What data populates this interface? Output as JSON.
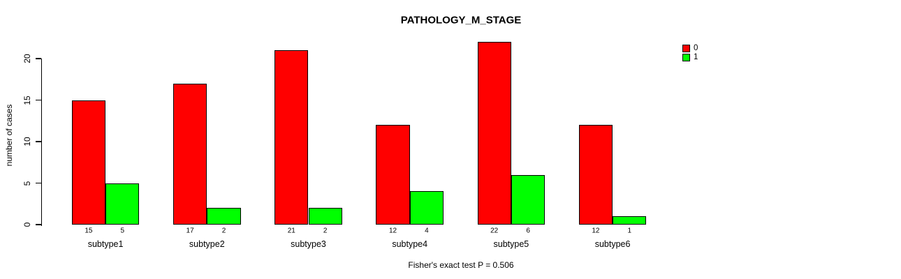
{
  "chart_data": {
    "type": "bar",
    "title": "PATHOLOGY_M_STAGE",
    "xlabel": "",
    "ylabel": "number of cases",
    "categories": [
      "subtype1",
      "subtype2",
      "subtype3",
      "subtype4",
      "subtype5",
      "subtype6"
    ],
    "series": [
      {
        "name": "0",
        "color": "#ff0000",
        "values": [
          15,
          17,
          21,
          12,
          22,
          12
        ]
      },
      {
        "name": "1",
        "color": "#00ff00",
        "values": [
          5,
          2,
          2,
          4,
          6,
          1
        ]
      }
    ],
    "bar_value_labels": [
      [
        15,
        5
      ],
      [
        17,
        2
      ],
      [
        21,
        2
      ],
      [
        12,
        4
      ],
      [
        22,
        6
      ],
      [
        12,
        1
      ]
    ],
    "y_ticks": [
      0,
      5,
      10,
      15,
      20
    ],
    "ylim": [
      0,
      22
    ],
    "grid": false,
    "legend_position": "topright",
    "background_color": "#ffffff",
    "axis_color": "#000000"
  },
  "footer": {
    "note": "Fisher's exact test P = 0.506"
  }
}
